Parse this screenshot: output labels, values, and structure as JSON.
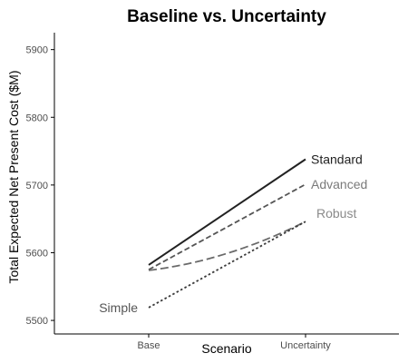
{
  "chart_data": {
    "type": "line",
    "title": "Baseline vs. Uncertainty",
    "xlabel": "Scenario",
    "ylabel": "Total Expected Net Present Cost ($M)",
    "categories": [
      "Base",
      "Uncertainty"
    ],
    "ylim": [
      5480,
      5925
    ],
    "yticks": [
      5500,
      5600,
      5700,
      5800,
      5900
    ],
    "grid": false,
    "legend": "none",
    "series": [
      {
        "name": "Standard",
        "values": [
          5582,
          5738
        ],
        "color": "#222222",
        "dash": "solid",
        "label_color": "#222222"
      },
      {
        "name": "Advanced",
        "values": [
          5575,
          5701
        ],
        "color": "#555555",
        "dash": "dashed",
        "label_color": "#7a7a7a"
      },
      {
        "name": "Robust",
        "values": [
          5574,
          5646
        ],
        "color": "#6a6a6a",
        "dash": "longdash",
        "label_color": "#8a8a8a"
      },
      {
        "name": "Simple",
        "values": [
          5519,
          5646
        ],
        "color": "#3a3a3a",
        "dash": "dotted",
        "label_color": "#555555",
        "label_side": "left"
      }
    ],
    "robust_mid": {
      "x": 0.5,
      "value": 5588
    }
  }
}
